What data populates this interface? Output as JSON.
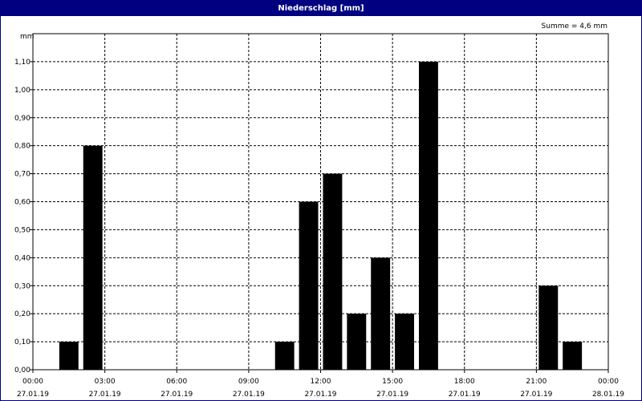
{
  "window": {
    "title": "Niederschlag [mm]"
  },
  "chart_data": {
    "type": "bar",
    "title": "Niederschlag [mm]",
    "ylabel": "mm",
    "summary": "Summe = 4,6 mm",
    "ylim": [
      0,
      1.2
    ],
    "yticks": [
      "0,00",
      "0,10",
      "0,20",
      "0,30",
      "0,40",
      "0,50",
      "0,60",
      "0,70",
      "0,80",
      "0,90",
      "1,00",
      "1,10"
    ],
    "yticks_values": [
      0,
      0.1,
      0.2,
      0.3,
      0.4,
      0.5,
      0.6,
      0.7,
      0.8,
      0.9,
      1.0,
      1.1
    ],
    "xlim_hours": [
      0,
      24
    ],
    "xticks": [
      {
        "time": "00:00",
        "date": "27.01.19"
      },
      {
        "time": "03:00",
        "date": "27.01.19"
      },
      {
        "time": "06:00",
        "date": "27.01.19"
      },
      {
        "time": "09:00",
        "date": "27.01.19"
      },
      {
        "time": "12:00",
        "date": "27.01.19"
      },
      {
        "time": "15:00",
        "date": "27.01.19"
      },
      {
        "time": "18:00",
        "date": "27.01.19"
      },
      {
        "time": "21:00",
        "date": "27.01.19"
      },
      {
        "time": "00:00",
        "date": "28.01.19"
      }
    ],
    "bars": [
      {
        "hour": 1,
        "value": 0.1
      },
      {
        "hour": 2,
        "value": 0.8
      },
      {
        "hour": 10,
        "value": 0.1
      },
      {
        "hour": 11,
        "value": 0.6
      },
      {
        "hour": 12,
        "value": 0.7
      },
      {
        "hour": 13,
        "value": 0.2
      },
      {
        "hour": 14,
        "value": 0.4
      },
      {
        "hour": 15,
        "value": 0.2
      },
      {
        "hour": 16,
        "value": 1.1
      },
      {
        "hour": 21,
        "value": 0.3
      },
      {
        "hour": 22,
        "value": 0.1
      }
    ],
    "grid": true,
    "bar_color": "#000000"
  }
}
